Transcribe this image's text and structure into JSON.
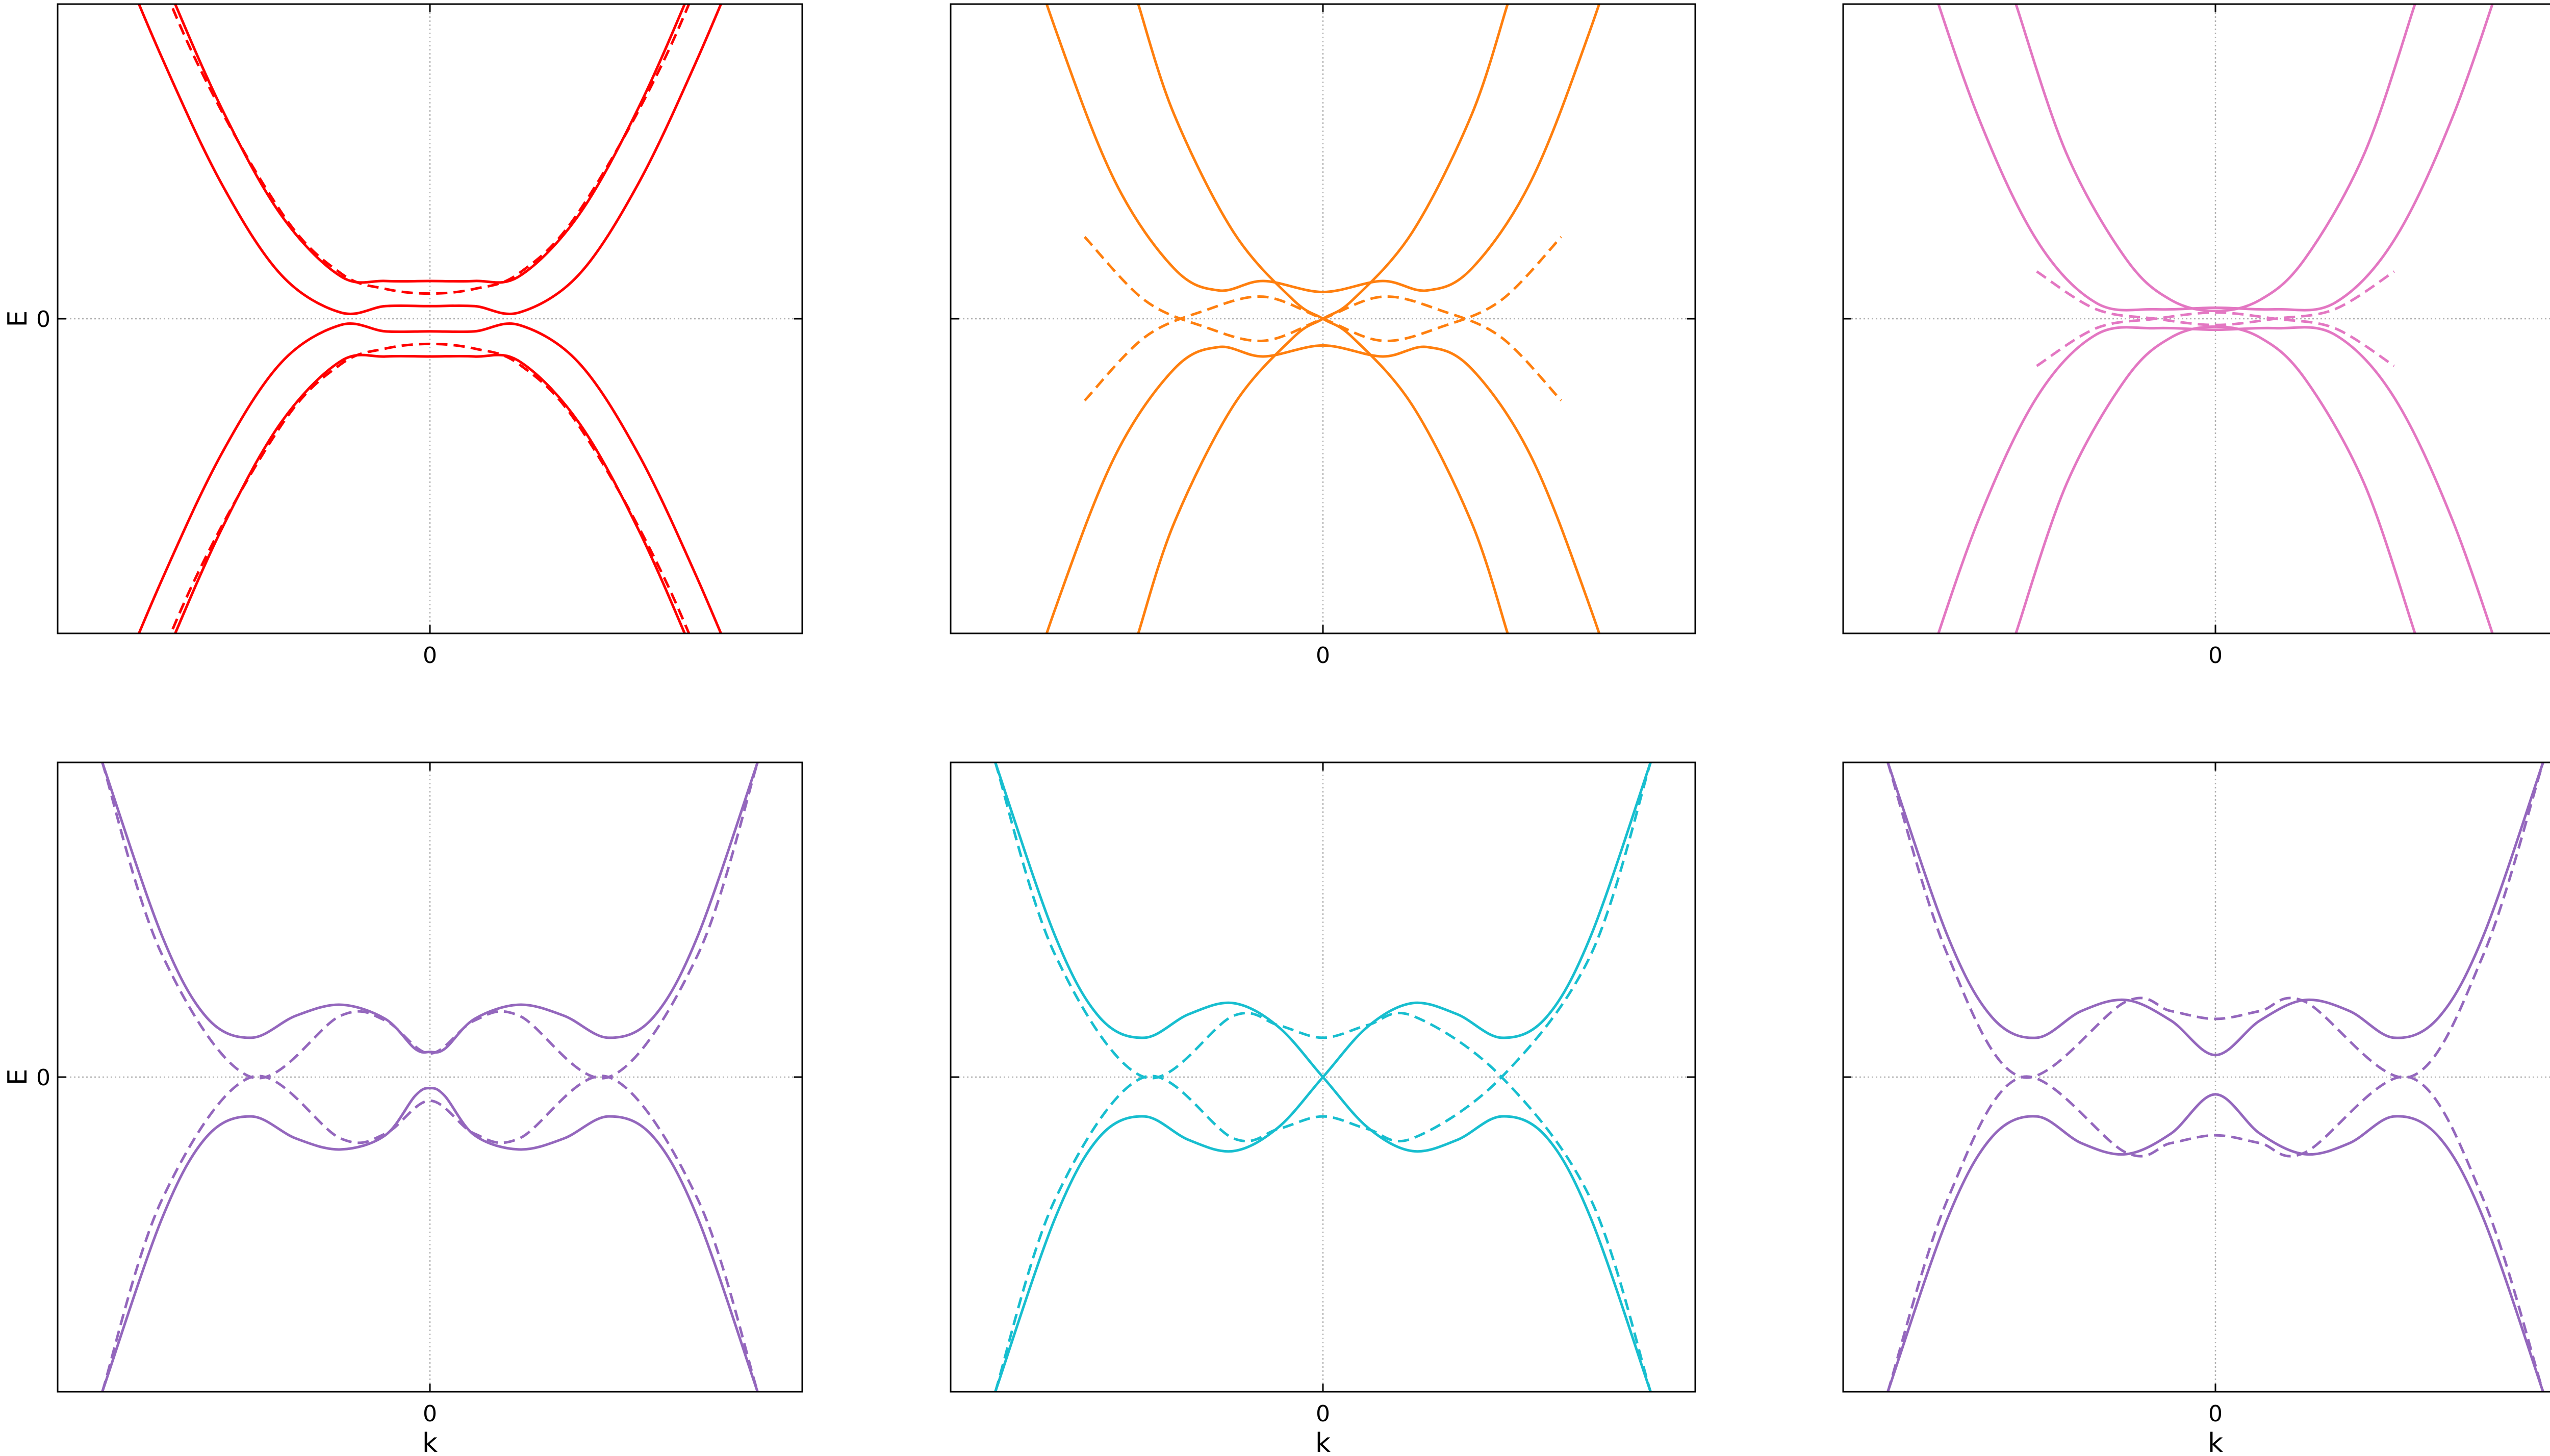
{
  "chart_data": [
    {
      "type": "line",
      "color": "#ff0000",
      "solid_bands": [
        {
          "x": [
            -1.1,
            -0.9,
            -0.7,
            -0.5,
            -0.3,
            -0.15,
            0,
            0.15,
            0.3,
            0.5,
            0.7,
            0.9,
            1.1
          ],
          "y": [
            3.12,
            2.2,
            1.34,
            0.66,
            0.27,
            0.24,
            0.24,
            0.24,
            0.27,
            0.66,
            1.34,
            2.2,
            3.12
          ]
        },
        {
          "x": [
            -1.1,
            -0.9,
            -0.7,
            -0.5,
            -0.3,
            -0.15,
            0,
            0.15,
            0.3,
            0.5,
            0.7,
            0.9,
            1.1
          ],
          "y": [
            2.56,
            1.66,
            0.86,
            0.28,
            0.04,
            0.08,
            0.08,
            0.08,
            0.04,
            0.28,
            0.86,
            1.66,
            2.56
          ]
        },
        {
          "x": [
            -1.1,
            -0.9,
            -0.7,
            -0.5,
            -0.3,
            -0.15,
            0,
            0.15,
            0.3,
            0.5,
            0.7,
            0.9,
            1.1
          ],
          "y": [
            -2.56,
            -1.66,
            -0.86,
            -0.28,
            -0.04,
            -0.08,
            -0.08,
            -0.08,
            -0.04,
            -0.28,
            -0.86,
            -1.66,
            -2.56
          ]
        },
        {
          "x": [
            -1.1,
            -0.9,
            -0.7,
            -0.5,
            -0.3,
            -0.15,
            0,
            0.15,
            0.3,
            0.5,
            0.7,
            0.9,
            1.1
          ],
          "y": [
            -3.12,
            -2.2,
            -1.34,
            -0.66,
            -0.27,
            -0.24,
            -0.24,
            -0.24,
            -0.27,
            -0.66,
            -1.34,
            -2.2,
            -3.12
          ]
        }
      ],
      "dashed_bands": [
        {
          "x": [
            -1.1,
            -0.8,
            -0.5,
            -0.3,
            -0.15,
            0,
            0.15,
            0.3,
            0.5,
            0.8,
            1.1
          ],
          "y": [
            3.1,
            1.7,
            0.68,
            0.29,
            0.19,
            0.16,
            0.19,
            0.29,
            0.68,
            1.7,
            3.1
          ]
        },
        {
          "x": [
            -1.1,
            -0.8,
            -0.5,
            -0.3,
            -0.15,
            0,
            0.15,
            0.3,
            0.5,
            0.8,
            1.1
          ],
          "y": [
            -3.1,
            -1.7,
            -0.68,
            -0.29,
            -0.19,
            -0.16,
            -0.19,
            -0.29,
            -0.68,
            -1.7,
            -3.1
          ]
        }
      ],
      "xlabel": "",
      "ylabel": "E",
      "xticks": [
        "0"
      ],
      "yticks": [
        "0"
      ],
      "xlim": [
        -1.25,
        1.25
      ],
      "ylim": [
        -2,
        2
      ],
      "grid": "zero lines (dotted)"
    },
    {
      "type": "line",
      "color": "#ff7f0e",
      "solid_bands": [
        {
          "x": [
            -1.1,
            -0.9,
            -0.7,
            -0.5,
            -0.35,
            -0.2,
            0,
            0.2,
            0.35,
            0.5,
            0.7,
            0.9,
            1.1
          ],
          "y": [
            3.0,
            1.85,
            0.88,
            0.32,
            0.18,
            0.24,
            0.17,
            0.24,
            0.18,
            0.32,
            0.88,
            1.85,
            3.0
          ]
        },
        {
          "x": [
            -1.1,
            -0.9,
            -0.7,
            -0.5,
            -0.35,
            -0.2,
            0,
            0.2,
            0.35,
            0.5,
            0.7,
            0.9,
            1.1
          ],
          "y": [
            -3.0,
            -1.85,
            -0.88,
            -0.32,
            -0.18,
            -0.24,
            -0.17,
            -0.24,
            -0.18,
            -0.32,
            -0.88,
            -1.85,
            -3.0
          ]
        },
        {
          "x": [
            -0.62,
            -0.5,
            -0.3,
            -0.1,
            0,
            0.1,
            0.3,
            0.5,
            0.62
          ],
          "y": [
            2.0,
            1.3,
            0.55,
            0.12,
            0.0,
            -0.12,
            -0.55,
            -1.3,
            -2.0
          ]
        },
        {
          "x": [
            -0.62,
            -0.5,
            -0.3,
            -0.1,
            0,
            0.1,
            0.3,
            0.5,
            0.62
          ],
          "y": [
            -2.0,
            -1.3,
            -0.55,
            -0.12,
            0.0,
            0.12,
            0.55,
            1.3,
            2.0
          ]
        }
      ],
      "dashed_bands": [
        {
          "x": [
            -0.8,
            -0.6,
            -0.4,
            -0.2,
            0,
            0.2,
            0.4,
            0.6,
            0.8
          ],
          "y": [
            0.52,
            0.12,
            -0.05,
            -0.14,
            0.0,
            0.14,
            0.05,
            -0.12,
            -0.52
          ]
        },
        {
          "x": [
            -0.8,
            -0.6,
            -0.4,
            -0.2,
            0,
            0.2,
            0.4,
            0.6,
            0.8
          ],
          "y": [
            -0.52,
            -0.12,
            0.05,
            0.14,
            0.0,
            -0.14,
            -0.05,
            0.12,
            0.52
          ]
        }
      ],
      "xlabel": "",
      "ylabel": "",
      "xticks": [
        "0"
      ],
      "yticks": [],
      "xlim": [
        -1.25,
        1.25
      ],
      "ylim": [
        -2,
        2
      ],
      "grid": "zero lines (dotted)"
    },
    {
      "type": "line",
      "color": "#e377c2",
      "solid_bands": [
        {
          "x": [
            -1.0,
            -0.8,
            -0.6,
            -0.4,
            -0.2,
            0,
            0.2,
            0.4,
            0.6,
            0.8,
            1.0
          ],
          "y": [
            2.4,
            1.3,
            0.5,
            0.1,
            0.06,
            0.07,
            0.06,
            0.1,
            0.5,
            1.3,
            2.4
          ]
        },
        {
          "x": [
            -1.0,
            -0.8,
            -0.6,
            -0.4,
            -0.2,
            0,
            0.2,
            0.4,
            0.6,
            0.8,
            1.0
          ],
          "y": [
            -2.4,
            -1.3,
            -0.5,
            -0.1,
            -0.06,
            -0.07,
            -0.06,
            -0.1,
            -0.5,
            -1.3,
            -2.4
          ]
        },
        {
          "x": [
            -0.67,
            -0.5,
            -0.3,
            -0.15,
            0,
            0.15,
            0.3,
            0.5,
            0.67
          ],
          "y": [
            2.0,
            1.05,
            0.38,
            0.12,
            0.05,
            0.12,
            0.38,
            1.05,
            2.0
          ]
        },
        {
          "x": [
            -0.67,
            -0.5,
            -0.3,
            -0.15,
            0,
            0.15,
            0.3,
            0.5,
            0.67
          ],
          "y": [
            -2.0,
            -1.05,
            -0.38,
            -0.12,
            -0.05,
            -0.12,
            -0.38,
            -1.05,
            -2.0
          ]
        }
      ],
      "dashed_bands": [
        {
          "x": [
            -0.6,
            -0.4,
            -0.2,
            0,
            0.2,
            0.4,
            0.6
          ],
          "y": [
            0.3,
            0.06,
            0.0,
            -0.04,
            0.0,
            0.06,
            0.3
          ]
        },
        {
          "x": [
            -0.6,
            -0.4,
            -0.2,
            0,
            0.2,
            0.4,
            0.6
          ],
          "y": [
            -0.3,
            -0.06,
            0.0,
            0.04,
            0.0,
            -0.06,
            -0.3
          ]
        }
      ],
      "xlabel": "",
      "ylabel": "",
      "xticks": [
        "0"
      ],
      "yticks": [],
      "xlim": [
        -1.25,
        1.25
      ],
      "ylim": [
        -2,
        2
      ],
      "grid": "zero lines (dotted)"
    },
    {
      "type": "line",
      "color": "#9467bd",
      "solid_bands": [
        {
          "x": [
            -1.1,
            -0.9,
            -0.75,
            -0.6,
            -0.45,
            -0.3,
            -0.15,
            -0.05,
            0,
            0.05,
            0.15,
            0.3,
            0.45,
            0.6,
            0.75,
            0.9,
            1.1
          ],
          "y": [
            2.0,
            0.9,
            0.38,
            0.25,
            0.39,
            0.46,
            0.37,
            0.18,
            0.16,
            0.18,
            0.37,
            0.46,
            0.39,
            0.25,
            0.38,
            0.9,
            2.0
          ]
        },
        {
          "x": [
            -1.1,
            -0.9,
            -0.75,
            -0.6,
            -0.45,
            -0.3,
            -0.15,
            -0.05,
            0,
            0.05,
            0.15,
            0.3,
            0.45,
            0.6,
            0.75,
            0.9,
            1.1
          ],
          "y": [
            -2.0,
            -0.9,
            -0.38,
            -0.25,
            -0.39,
            -0.46,
            -0.37,
            -0.12,
            -0.07,
            -0.12,
            -0.37,
            -0.46,
            -0.39,
            -0.25,
            -0.38,
            -0.9,
            -2.0
          ]
        }
      ],
      "dashed_bands": [
        {
          "x": [
            -1.1,
            -0.9,
            -0.6,
            -0.3,
            -0.15,
            0,
            0.15,
            0.3,
            0.6,
            0.9,
            1.1
          ],
          "y": [
            2.0,
            0.78,
            0.0,
            0.39,
            0.36,
            0.15,
            0.36,
            0.39,
            0.0,
            0.78,
            2.0
          ]
        },
        {
          "x": [
            -1.1,
            -0.9,
            -0.6,
            -0.3,
            -0.15,
            0,
            0.15,
            0.3,
            0.6,
            0.9,
            1.1
          ],
          "y": [
            -2.0,
            -0.78,
            0.0,
            -0.39,
            -0.36,
            -0.15,
            -0.36,
            -0.39,
            0.0,
            -0.78,
            -2.0
          ]
        }
      ],
      "xlabel": "k",
      "ylabel": "E",
      "xticks": [
        "0"
      ],
      "yticks": [
        "0"
      ],
      "xlim": [
        -1.25,
        1.25
      ],
      "ylim": [
        -2,
        2
      ],
      "grid": "zero lines (dotted)"
    },
    {
      "type": "line",
      "color": "#17becf",
      "solid_bands": [
        {
          "x": [
            -1.1,
            -0.9,
            -0.75,
            -0.6,
            -0.45,
            -0.3,
            -0.15,
            0,
            0.15,
            0.3,
            0.45,
            0.6,
            0.75,
            0.9,
            1.1
          ],
          "y": [
            2.0,
            0.9,
            0.38,
            0.25,
            0.4,
            0.47,
            0.32,
            0.0,
            -0.32,
            -0.47,
            -0.4,
            -0.25,
            -0.38,
            -0.9,
            -2.0
          ]
        },
        {
          "x": [
            -1.1,
            -0.9,
            -0.75,
            -0.6,
            -0.45,
            -0.3,
            -0.15,
            0,
            0.15,
            0.3,
            0.45,
            0.6,
            0.75,
            0.9,
            1.1
          ],
          "y": [
            -2.0,
            -0.9,
            -0.38,
            -0.25,
            -0.4,
            -0.47,
            -0.32,
            0.0,
            0.32,
            0.47,
            0.4,
            0.25,
            0.38,
            0.9,
            2.0
          ]
        }
      ],
      "dashed_bands": [
        {
          "x": [
            -1.1,
            -0.9,
            -0.6,
            -0.3,
            -0.15,
            0,
            0.15,
            0.3,
            0.6,
            0.9,
            1.1
          ],
          "y": [
            2.0,
            0.78,
            0.0,
            0.39,
            0.33,
            0.25,
            0.33,
            0.39,
            0.0,
            -0.78,
            -2.0
          ]
        },
        {
          "x": [
            -1.1,
            -0.9,
            -0.6,
            -0.3,
            -0.15,
            0,
            0.15,
            0.3,
            0.6,
            0.9,
            1.1
          ],
          "y": [
            -2.0,
            -0.78,
            0.0,
            -0.39,
            -0.33,
            -0.25,
            -0.33,
            -0.39,
            0.0,
            0.78,
            2.0
          ]
        }
      ],
      "xlabel": "k",
      "ylabel": "",
      "xticks": [
        "0"
      ],
      "yticks": [],
      "xlim": [
        -1.25,
        1.25
      ],
      "ylim": [
        -2,
        2
      ],
      "grid": "zero lines (dotted)"
    },
    {
      "type": "line",
      "color": "#9467bd",
      "solid_bands": [
        {
          "x": [
            -1.1,
            -0.9,
            -0.75,
            -0.6,
            -0.45,
            -0.3,
            -0.15,
            0,
            0.15,
            0.3,
            0.45,
            0.6,
            0.75,
            0.9,
            1.1
          ],
          "y": [
            2.0,
            0.9,
            0.38,
            0.25,
            0.42,
            0.49,
            0.36,
            0.14,
            0.36,
            0.49,
            0.42,
            0.25,
            0.38,
            0.9,
            2.0
          ]
        },
        {
          "x": [
            -1.1,
            -0.9,
            -0.75,
            -0.6,
            -0.45,
            -0.3,
            -0.15,
            0,
            0.15,
            0.3,
            0.45,
            0.6,
            0.75,
            0.9,
            1.1
          ],
          "y": [
            -2.0,
            -0.9,
            -0.38,
            -0.25,
            -0.42,
            -0.49,
            -0.36,
            -0.11,
            -0.36,
            -0.49,
            -0.42,
            -0.25,
            -0.38,
            -0.9,
            -2.0
          ]
        }
      ],
      "dashed_bands": [
        {
          "x": [
            -1.1,
            -0.9,
            -0.65,
            -0.3,
            -0.15,
            0,
            0.15,
            0.3,
            0.65,
            0.9,
            1.1
          ],
          "y": [
            2.0,
            0.78,
            0.0,
            0.48,
            0.42,
            0.37,
            0.42,
            0.48,
            0.0,
            0.78,
            2.0
          ]
        },
        {
          "x": [
            -1.1,
            -0.9,
            -0.65,
            -0.3,
            -0.15,
            0,
            0.15,
            0.3,
            0.65,
            0.9,
            1.1
          ],
          "y": [
            -2.0,
            -0.78,
            0.0,
            -0.48,
            -0.42,
            -0.37,
            -0.42,
            -0.48,
            0.0,
            -0.78,
            -2.0
          ]
        }
      ],
      "xlabel": "k",
      "ylabel": "",
      "xticks": [
        "0"
      ],
      "yticks": [],
      "xlim": [
        -1.25,
        1.25
      ],
      "ylim": [
        -2,
        2
      ],
      "grid": "zero lines (dotted)"
    }
  ]
}
